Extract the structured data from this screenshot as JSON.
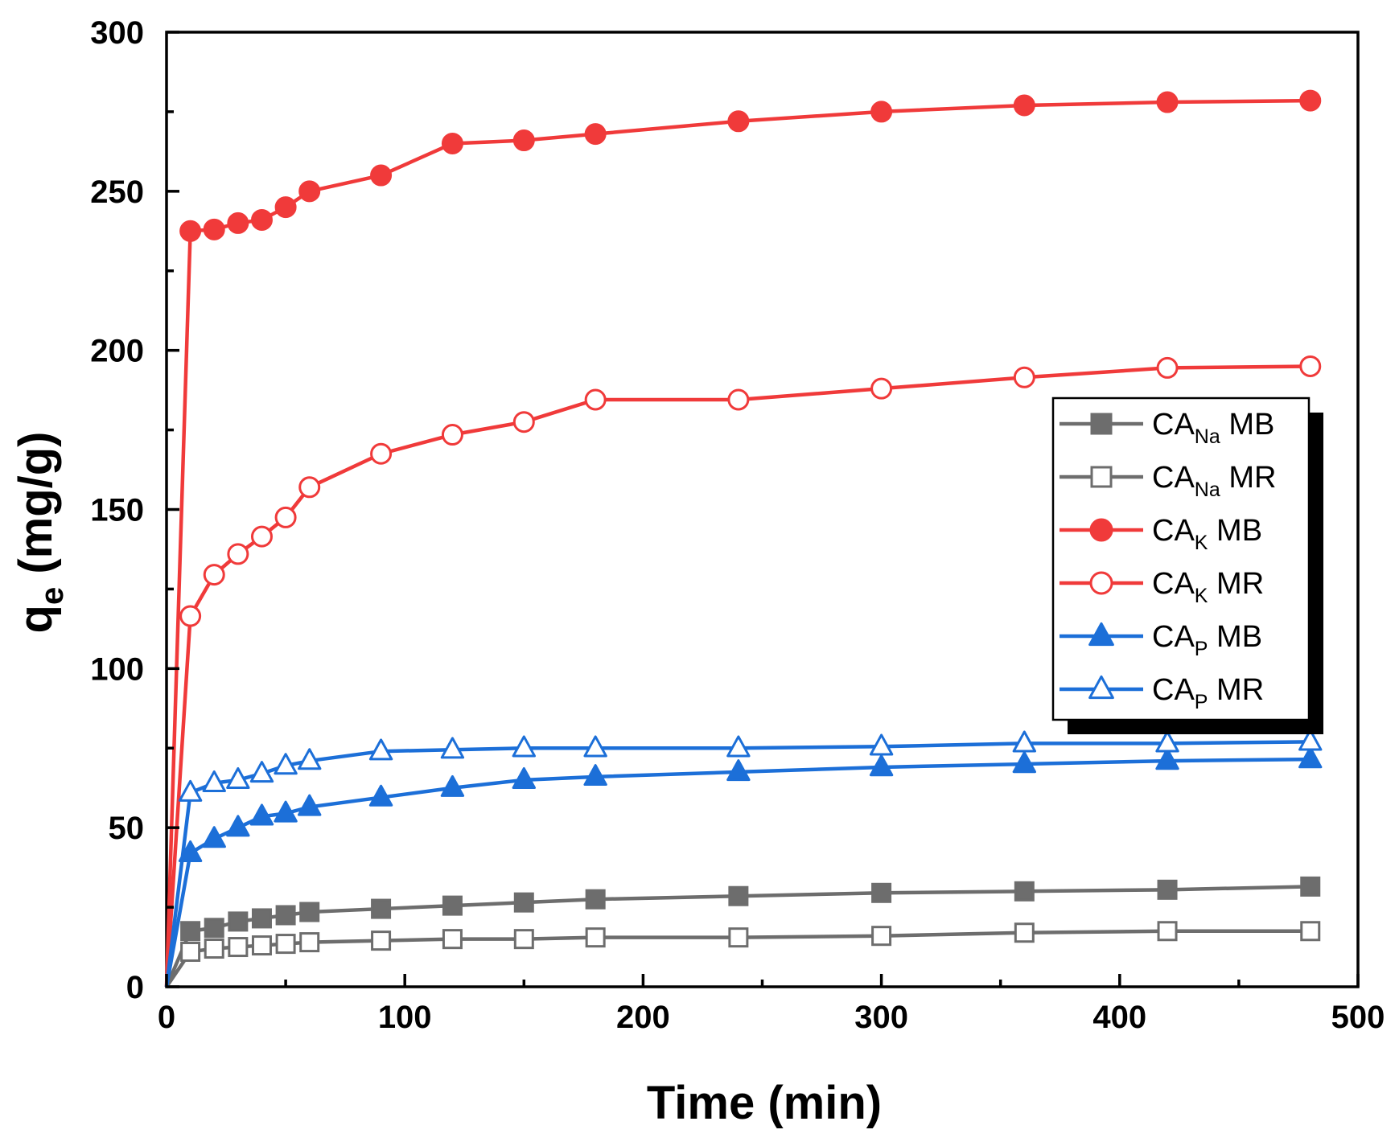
{
  "chart_data": {
    "type": "line",
    "title": "",
    "xlabel": "Time (min)",
    "ylabel": {
      "main": "q",
      "sub": "e",
      "rest": " (mg/g)"
    },
    "xlim": [
      0,
      500
    ],
    "ylim": [
      0,
      300
    ],
    "xticks": [
      0,
      100,
      200,
      300,
      400,
      500
    ],
    "yticks": [
      0,
      50,
      100,
      150,
      200,
      250,
      300
    ],
    "grid": false,
    "legend_position": "right",
    "x": [
      0,
      10,
      20,
      30,
      40,
      50,
      60,
      90,
      120,
      150,
      180,
      240,
      300,
      360,
      420,
      480
    ],
    "series": [
      {
        "name": "CANa MB",
        "label_main": "CA",
        "label_sub": "Na",
        "label_rest": " MB",
        "color": "#6d6d6d",
        "marker": "square",
        "filled": true,
        "values": [
          0,
          17.5,
          18.5,
          20.5,
          21.5,
          22.5,
          23.5,
          24.5,
          25.5,
          26.5,
          27.5,
          28.5,
          29.5,
          30,
          30.5,
          31.5
        ]
      },
      {
        "name": "CANa MR",
        "label_main": "CA",
        "label_sub": "Na",
        "label_rest": " MR",
        "color": "#6d6d6d",
        "marker": "square",
        "filled": false,
        "values": [
          0,
          11,
          12,
          12.5,
          13,
          13.5,
          14,
          14.5,
          15,
          15,
          15.5,
          15.5,
          16,
          17,
          17.5,
          17.5
        ]
      },
      {
        "name": "CAK MB",
        "label_main": "CA",
        "label_sub": "K",
        "label_rest": " MB",
        "color": "#f03a3a",
        "marker": "circle",
        "filled": true,
        "values": [
          0,
          237.5,
          238,
          240,
          241,
          245,
          250,
          255,
          265,
          266,
          268,
          272,
          275,
          277,
          278,
          278.5
        ]
      },
      {
        "name": "CAK MR",
        "label_main": "CA",
        "label_sub": "K",
        "label_rest": " MR",
        "color": "#f03a3a",
        "marker": "circle",
        "filled": false,
        "values": [
          0,
          116.5,
          129.5,
          136,
          141.5,
          147.5,
          157,
          167.5,
          173.5,
          177.5,
          184.5,
          184.5,
          188,
          191.5,
          194.5,
          195
        ]
      },
      {
        "name": "CAP MB",
        "label_main": "CA",
        "label_sub": "P",
        "label_rest": " MB",
        "color": "#1c6fd8",
        "marker": "triangle",
        "filled": true,
        "values": [
          0,
          42,
          46.5,
          50,
          53.5,
          54.5,
          56.5,
          59.5,
          62.5,
          65,
          66,
          67.5,
          69,
          70,
          71,
          71.5
        ]
      },
      {
        "name": "CAP MR",
        "label_main": "CA",
        "label_sub": "P",
        "label_rest": " MR",
        "color": "#1c6fd8",
        "marker": "triangle",
        "filled": false,
        "values": [
          0,
          61,
          64,
          65,
          67,
          69.5,
          71,
          74,
          74.5,
          75,
          75,
          75,
          75.5,
          76.5,
          76.5,
          77
        ]
      }
    ]
  }
}
